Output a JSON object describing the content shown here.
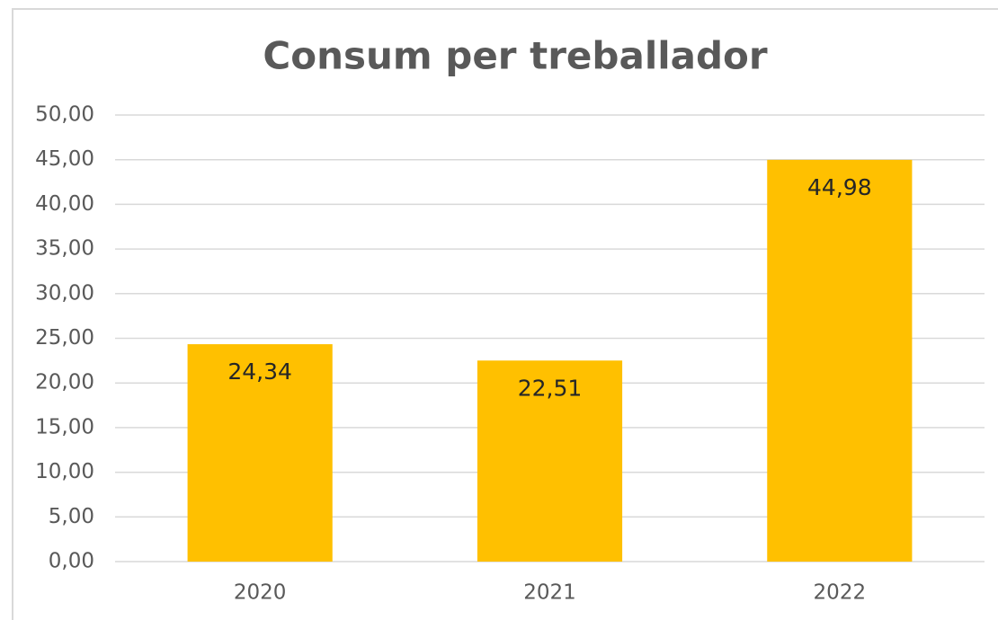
{
  "chart_data": {
    "type": "bar",
    "title": "Consum per treballador",
    "categories": [
      "2020",
      "2021",
      "2022"
    ],
    "values": [
      24.34,
      22.51,
      44.98
    ],
    "value_labels": [
      "24,34",
      "22,51",
      "44,98"
    ],
    "color": "#ffc000",
    "ylim": [
      0,
      50
    ],
    "yticks": [
      {
        "value": 0,
        "label": "0,00"
      },
      {
        "value": 5,
        "label": "5,00"
      },
      {
        "value": 10,
        "label": "10,00"
      },
      {
        "value": 15,
        "label": "15,00"
      },
      {
        "value": 20,
        "label": "20,00"
      },
      {
        "value": 25,
        "label": "25,00"
      },
      {
        "value": 30,
        "label": "30,00"
      },
      {
        "value": 35,
        "label": "35,00"
      },
      {
        "value": 40,
        "label": "40,00"
      },
      {
        "value": 45,
        "label": "45,00"
      },
      {
        "value": 50,
        "label": "50,00"
      }
    ],
    "grid": true
  }
}
